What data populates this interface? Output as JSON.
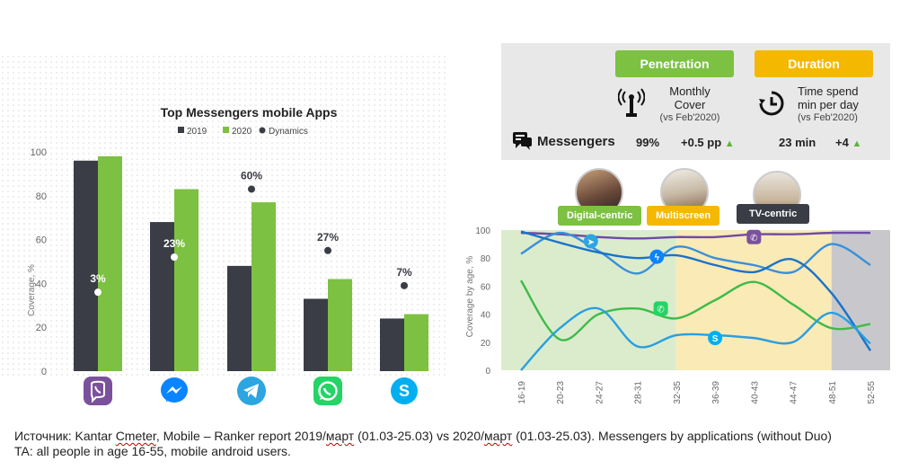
{
  "bar_chart": {
    "title": "Top Messengers mobile Apps",
    "ylabel": "Coverage, %",
    "legend": [
      {
        "label": "2019",
        "color": "#3a3d46"
      },
      {
        "label": "2020",
        "color": "#7cc142"
      },
      {
        "label": "Dynamics",
        "color": "#3a3d46"
      }
    ],
    "yticks": [
      "100",
      "80",
      "60",
      "40",
      "20",
      "0"
    ],
    "apps": [
      {
        "name": "Viber",
        "icon": "viber-icon",
        "v2019": 96,
        "v2020": 98,
        "dyn": 36,
        "dyn_label": "3%"
      },
      {
        "name": "Messenger",
        "icon": "messenger-icon",
        "v2019": 68,
        "v2020": 83,
        "dyn": 52,
        "dyn_label": "23%"
      },
      {
        "name": "Telegram",
        "icon": "telegram-icon",
        "v2019": 48,
        "v2020": 77,
        "dyn": 83,
        "dyn_label": "60%"
      },
      {
        "name": "WhatsApp",
        "icon": "whatsapp-icon",
        "v2019": 33,
        "v2020": 42,
        "dyn": 55,
        "dyn_label": "27%"
      },
      {
        "name": "Skype",
        "icon": "skype-icon",
        "v2019": 24,
        "v2020": 26,
        "dyn": 39,
        "dyn_label": "7%"
      }
    ]
  },
  "kpi": {
    "penetration_label": "Penetration",
    "duration_label": "Duration",
    "monthly_cover_line1": "Monthly",
    "monthly_cover_line2": "Cover",
    "monthly_cover_note": "(vs Feb'2020)",
    "time_spend_line1": "Time spend",
    "time_spend_line2": "min per day",
    "time_spend_note": "(vs Feb'2020)",
    "row_label": "Messengers",
    "cover_value": "99%",
    "cover_delta": "+0.5 pp",
    "time_value": "23 min",
    "time_delta": "+4",
    "penetration_color": "#7cc142",
    "duration_color": "#f5b800"
  },
  "segments": [
    {
      "label": "Digital-centric",
      "color": "#7cc142"
    },
    {
      "label": "Multiscreen",
      "color": "#f5b800"
    },
    {
      "label": "TV-centric",
      "color": "#3a3d46"
    }
  ],
  "chart_data": [
    {
      "type": "bar",
      "title": "Top Messengers mobile Apps",
      "ylabel": "Coverage, %",
      "ylim": [
        0,
        100
      ],
      "categories": [
        "Viber",
        "Messenger",
        "Telegram",
        "WhatsApp",
        "Skype"
      ],
      "series": [
        {
          "name": "2019",
          "values": [
            96,
            68,
            48,
            33,
            24
          ]
        },
        {
          "name": "2020",
          "values": [
            98,
            83,
            77,
            42,
            26
          ]
        }
      ],
      "annotations": {
        "name": "Dynamics",
        "labels": [
          "3%",
          "23%",
          "60%",
          "27%",
          "7%"
        ]
      }
    },
    {
      "type": "line",
      "ylabel": "Coverage by age, %",
      "ylim": [
        0,
        100
      ],
      "x": [
        "16-19",
        "20-23",
        "24-27",
        "28-31",
        "32-35",
        "36-39",
        "40-43",
        "44-47",
        "48-51",
        "52-55"
      ],
      "series": [
        {
          "name": "Viber",
          "color": "#6f4aa8",
          "values": [
            98,
            97,
            95,
            94,
            95,
            95,
            97,
            97,
            98,
            98
          ]
        },
        {
          "name": "Telegram",
          "color": "#3a8fd8",
          "values": [
            83,
            98,
            85,
            69,
            88,
            80,
            75,
            70,
            90,
            75
          ]
        },
        {
          "name": "Messenger",
          "color": "#1a73c8",
          "values": [
            99,
            91,
            84,
            80,
            82,
            75,
            70,
            79,
            55,
            14
          ]
        },
        {
          "name": "WhatsApp",
          "color": "#3dbb4a",
          "values": [
            64,
            22,
            40,
            44,
            37,
            50,
            63,
            47,
            30,
            33
          ]
        },
        {
          "name": "Skype",
          "color": "#2a9fe0",
          "values": [
            0,
            30,
            44,
            17,
            25,
            25,
            23,
            20,
            41,
            19
          ]
        }
      ],
      "bands": [
        {
          "label": "Digital-centric",
          "from": "16-19",
          "to": "32-35"
        },
        {
          "label": "Multiscreen",
          "from": "32-35",
          "to": "48-51"
        },
        {
          "label": "TV-centric",
          "from": "48-51",
          "to": "52-55"
        }
      ],
      "yticks": [
        "100",
        "80",
        "60",
        "40",
        "20",
        "0"
      ]
    }
  ],
  "footer": {
    "line1_prefix": "Источник: Kantar ",
    "line1_cmeter": "Cmeter",
    "line1_mid": ", Mobile – Ranker report 2019/",
    "line1_mart1": "март",
    "line1_mid2": " (01.03-25.03) vs 2020/",
    "line1_mart2": "март",
    "line1_end": " (01.03-25.03). Messengers by applications (without Duo)",
    "line2": "TA: all people  in age 16-55, mobile android users."
  }
}
